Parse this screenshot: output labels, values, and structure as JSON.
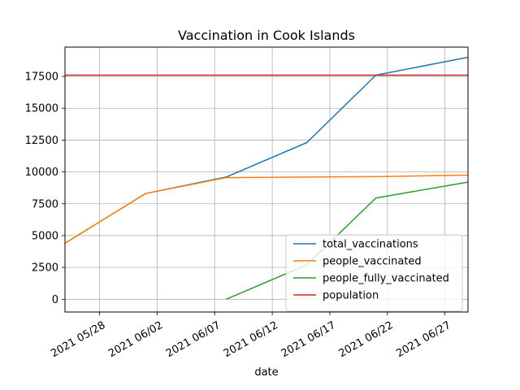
{
  "chart_data": {
    "type": "line",
    "title": "Vaccination in Cook Islands",
    "xlabel": "date",
    "ylabel": "",
    "x_range": [
      "2021-05-25",
      "2021-06-29"
    ],
    "ylim": [
      -1000,
      19800
    ],
    "yticks": [
      0,
      2500,
      5000,
      7500,
      10000,
      12500,
      15000,
      17500
    ],
    "ytick_labels": [
      "0",
      "2500",
      "5000",
      "7500",
      "10000",
      "12500",
      "15000",
      "17500"
    ],
    "xticks": [
      "2021-05-28",
      "2021-06-02",
      "2021-06-07",
      "2021-06-12",
      "2021-06-17",
      "2021-06-22",
      "2021-06-27"
    ],
    "xtick_labels": [
      "2021 05/28",
      "2021 06/02",
      "2021 06/07",
      "2021 06/12",
      "2021 06/17",
      "2021 06/22",
      "2021 06/27"
    ],
    "grid": true,
    "legend_position": "lower-right",
    "series": [
      {
        "name": "total_vaccinations",
        "color": "#1f77b4",
        "points": [
          [
            "2021-05-25",
            4400
          ],
          [
            "2021-06-01",
            8300
          ],
          [
            "2021-06-08",
            9600
          ],
          [
            "2021-06-15",
            12300
          ],
          [
            "2021-06-21",
            17600
          ],
          [
            "2021-06-29",
            19000
          ]
        ]
      },
      {
        "name": "people_vaccinated",
        "color": "#ff7f0e",
        "points": [
          [
            "2021-05-25",
            4400
          ],
          [
            "2021-06-01",
            8300
          ],
          [
            "2021-06-08",
            9550
          ],
          [
            "2021-06-15",
            9600
          ],
          [
            "2021-06-21",
            9630
          ],
          [
            "2021-06-29",
            9750
          ]
        ]
      },
      {
        "name": "people_fully_vaccinated",
        "color": "#2ca02c",
        "points": [
          [
            "2021-06-08",
            0
          ],
          [
            "2021-06-15",
            2700
          ],
          [
            "2021-06-21",
            7950
          ],
          [
            "2021-06-29",
            9200
          ]
        ]
      },
      {
        "name": "population",
        "color": "#d62728",
        "points": [
          [
            "2021-05-25",
            17600
          ],
          [
            "2021-06-29",
            17600
          ]
        ]
      }
    ]
  }
}
